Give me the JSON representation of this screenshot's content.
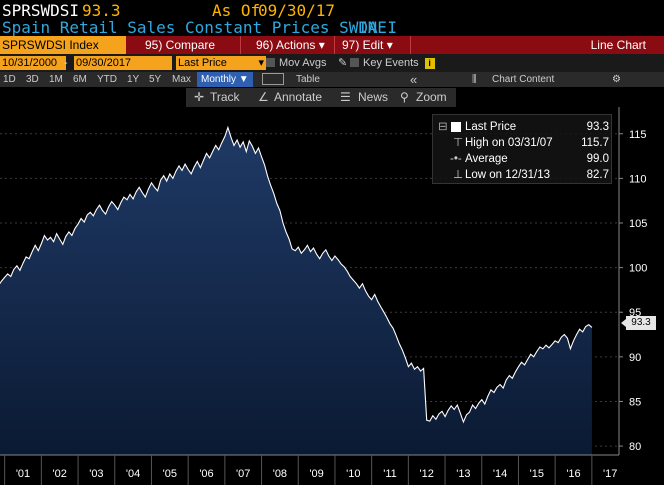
{
  "header": {
    "ticker": "SPRSWDSI",
    "last": "93.3",
    "as_of_label": "As Of",
    "as_of_date": "09/30/17",
    "description": "Spain Retail Sales Constant Prices SWDA I",
    "source": "INE"
  },
  "menu": {
    "index": "SPRSWDSI Index",
    "compare": "95) Compare",
    "actions": "96) Actions ▾",
    "edit": "97) Edit ▾",
    "chart_type": "Line Chart"
  },
  "toolbar": {
    "start_date": "10/31/2000",
    "dash": "-",
    "end_date": "09/30/2017",
    "price_field": "Last Price",
    "mov_avgs": "Mov Avgs",
    "key_events": "Key Events",
    "ranges": [
      "1D",
      "3D",
      "1M",
      "6M",
      "YTD",
      "1Y",
      "5Y",
      "Max"
    ],
    "frequency": "Monthly ▼",
    "table": "Table",
    "collapse": "«",
    "chart_content": "Chart Content",
    "gear": "⚙"
  },
  "chart_tools": {
    "track": "Track",
    "annotate": "Annotate",
    "news": "News",
    "zoom": "Zoom"
  },
  "legend": {
    "last_price_label": "Last Price",
    "last_price_value": "93.3",
    "high_label": "High on 03/31/07",
    "high_value": "115.7",
    "average_label": "Average",
    "average_value": "99.0",
    "low_label": "Low on 12/31/13",
    "low_value": "82.7"
  },
  "last_tag": "93.3",
  "colors": {
    "area_top": "#1f3a66",
    "area_bottom": "#0b1a33",
    "line": "#ffffff",
    "menu_bar": "#8a0c12",
    "field": "#f5a21c"
  },
  "chart_data": {
    "type": "area",
    "ylim": [
      79,
      118
    ],
    "yticks": [
      80,
      85,
      90,
      95,
      100,
      105,
      110,
      115
    ],
    "xticks": [
      "'01",
      "'02",
      "'03",
      "'04",
      "'05",
      "'06",
      "'07",
      "'08",
      "'09",
      "'10",
      "'11",
      "'12",
      "'13",
      "'14",
      "'15",
      "'16",
      "'17"
    ],
    "series": [
      {
        "x_start": "2000-10",
        "frequency": "monthly",
        "values": [
          97.2,
          98.0,
          98.5,
          98.9,
          99.3,
          99.0,
          99.8,
          100.2,
          99.7,
          100.5,
          101.2,
          101.0,
          101.8,
          102.5,
          101.9,
          102.7,
          103.6,
          103.1,
          103.4,
          102.9,
          103.8,
          103.2,
          102.6,
          103.5,
          104.0,
          103.6,
          104.4,
          104.9,
          105.5,
          105.1,
          105.9,
          106.2,
          105.8,
          106.5,
          107.0,
          106.4,
          106.0,
          106.8,
          107.4,
          107.0,
          106.5,
          107.3,
          107.9,
          107.6,
          108.2,
          107.7,
          108.5,
          109.0,
          108.4,
          107.9,
          108.8,
          109.5,
          109.0,
          108.6,
          109.8,
          110.3,
          109.7,
          110.5,
          110.0,
          110.8,
          111.4,
          110.9,
          111.6,
          111.0,
          110.5,
          111.3,
          111.9,
          111.2,
          112.0,
          112.8,
          112.3,
          113.0,
          113.7,
          113.2,
          114.0,
          114.7,
          115.7,
          114.6,
          113.7,
          114.3,
          113.5,
          114.1,
          113.0,
          114.2,
          113.6,
          112.8,
          113.4,
          112.4,
          111.5,
          110.2,
          109.2,
          108.3,
          107.2,
          106.4,
          105.0,
          104.0,
          103.2,
          102.1,
          101.9,
          102.3,
          101.6,
          102.0,
          102.5,
          101.8,
          102.2,
          101.5,
          101.0,
          101.6,
          102.0,
          101.3,
          100.8,
          101.3,
          100.9,
          100.4,
          100.1,
          99.6,
          99.0,
          98.6,
          98.2,
          97.7,
          98.2,
          97.4,
          96.8,
          96.4,
          97.0,
          96.2,
          95.6,
          95.0,
          94.4,
          93.7,
          93.2,
          92.4,
          91.5,
          90.8,
          89.9,
          88.9,
          89.3,
          88.6,
          88.9,
          88.4,
          88.7,
          82.9,
          82.8,
          83.4,
          83.0,
          83.6,
          83.9,
          83.3,
          84.0,
          84.5,
          84.1,
          84.6,
          83.7,
          82.7,
          83.5,
          83.8,
          84.6,
          84.2,
          84.8,
          85.2,
          84.7,
          85.6,
          86.3,
          86.0,
          86.6,
          86.9,
          86.5,
          87.4,
          87.9,
          87.6,
          88.3,
          88.9,
          89.4,
          89.1,
          89.7,
          90.3,
          90.0,
          90.6,
          91.1,
          90.9,
          91.3,
          91.0,
          91.4,
          91.8,
          91.6,
          92.2,
          92.5,
          92.1,
          90.9,
          91.8,
          92.5,
          93.1,
          92.8,
          93.4,
          93.6,
          93.3
        ]
      }
    ]
  }
}
